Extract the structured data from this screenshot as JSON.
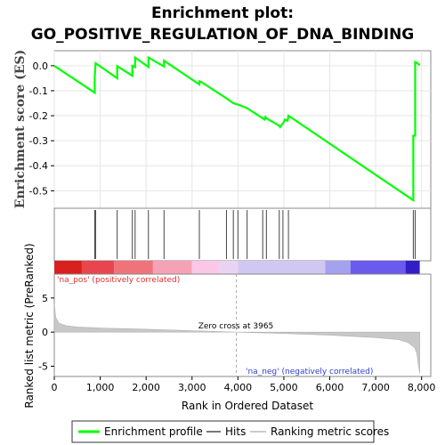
{
  "chart_data": {
    "type": "line",
    "title_line1": "Enrichment plot:",
    "title_line2": "GO_POSITIVE_REGULATION_OF_DNA_BINDING",
    "es_panel": {
      "ylabel": "Enrichment score (ES)",
      "ylim": [
        -0.57,
        0.06
      ],
      "yticks": [
        0.0,
        -0.1,
        -0.2,
        -0.3,
        -0.4,
        -0.5
      ],
      "ytick_labels": [
        "0.0",
        "-0.1",
        "-0.2",
        "-0.3",
        "-0.4",
        "-0.5"
      ],
      "xlim": [
        0,
        8200
      ],
      "series": [
        {
          "name": "Enrichment profile",
          "color": "#00ff00",
          "x": [
            0,
            880,
            881,
            900,
            1370,
            1371,
            1700,
            1701,
            1760,
            1761,
            2050,
            2051,
            2390,
            2391,
            3160,
            3161,
            3200,
            3750,
            3900,
            4000,
            4200,
            4540,
            4580,
            4600,
            4620,
            4900,
            4920,
            5000,
            5020,
            5080,
            5100,
            7820,
            7821,
            7860,
            7861,
            7900,
            7960
          ],
          "y": [
            0.0,
            -0.108,
            -0.045,
            0.01,
            -0.05,
            -0.002,
            -0.04,
            0.0,
            -0.005,
            0.033,
            -0.005,
            0.033,
            -0.003,
            0.02,
            -0.075,
            -0.062,
            -0.065,
            -0.13,
            -0.15,
            -0.155,
            -0.17,
            -0.21,
            -0.215,
            -0.205,
            -0.21,
            -0.24,
            -0.245,
            -0.225,
            -0.215,
            -0.22,
            -0.2,
            -0.538,
            -0.28,
            -0.28,
            0.015,
            0.012,
            0.002
          ]
        }
      ]
    },
    "hits_panel": {
      "hit_positions": [
        880,
        900,
        1370,
        1700,
        1760,
        2050,
        2390,
        3160,
        3750,
        3900,
        4000,
        4200,
        4540,
        4620,
        4900,
        4980,
        5100,
        7820,
        7860
      ]
    },
    "metric_panel": {
      "ylabel": "Ranked list metric (PreRanked)",
      "ylim": [
        -6.5,
        8.5
      ],
      "yticks": [
        5,
        0,
        -5
      ],
      "ytick_labels": [
        "5",
        "0",
        "-5"
      ],
      "xlabel": "Rank in Ordered Dataset",
      "xlim": [
        0,
        8200
      ],
      "xticks": [
        0,
        1000,
        2000,
        3000,
        4000,
        5000,
        6000,
        7000,
        8000
      ],
      "xtick_labels": [
        "0",
        "1,000",
        "2,000",
        "3,000",
        "4,000",
        "5,000",
        "6,000",
        "7,000",
        "8,000"
      ],
      "zero_cross": 3965,
      "zero_cross_label": "Zero cross at 3965",
      "pos_label": "'na_pos' (positively correlated)",
      "neg_label": "'na_neg' (negatively correlated)",
      "fill_color": "#c8c8c8",
      "curve": {
        "x": [
          0,
          30,
          100,
          250,
          500,
          1000,
          2000,
          3000,
          3965,
          5000,
          6000,
          7000,
          7500,
          7700,
          7850,
          7900,
          7930,
          7960
        ],
        "y": [
          4.2,
          2.2,
          1.3,
          0.95,
          0.75,
          0.6,
          0.42,
          0.22,
          0.0,
          -0.2,
          -0.45,
          -0.8,
          -1.1,
          -1.5,
          -2.3,
          -3.2,
          -4.8,
          -6.0
        ]
      }
    },
    "color_bar": {
      "colors": [
        "#d8201e",
        "#e8464e",
        "#f0737b",
        "#f5a2b6",
        "#fac8e6",
        "#e8d4f2",
        "#d0c8f2",
        "#a4a2ee",
        "#6a5aee",
        "#3020c4"
      ],
      "bounds": [
        0,
        600,
        1300,
        2150,
        3000,
        3600,
        4000,
        5900,
        6450,
        7650,
        7960
      ]
    },
    "legend": {
      "items": [
        {
          "label": "Enrichment profile",
          "color": "#00ff00"
        },
        {
          "label": "Hits",
          "color": "#777777"
        },
        {
          "label": "Ranking metric scores",
          "color": "#cccccc"
        }
      ]
    }
  }
}
